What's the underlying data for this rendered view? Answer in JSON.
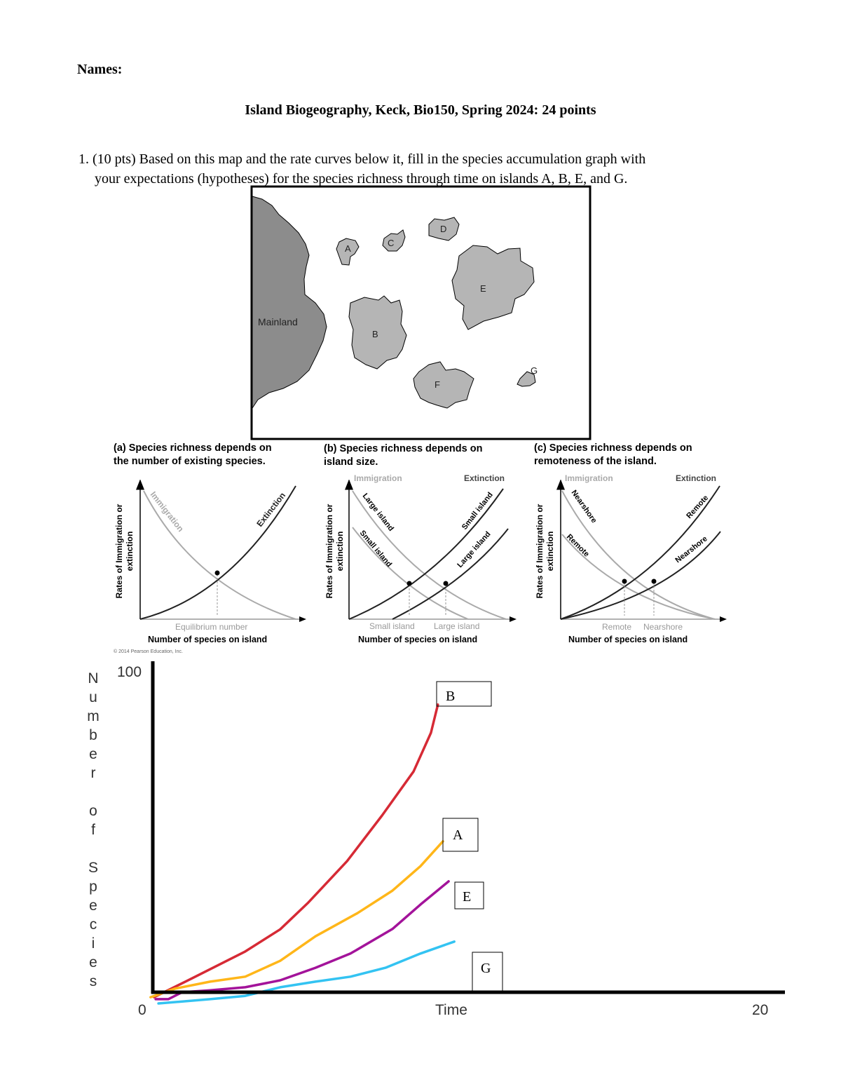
{
  "header": {
    "names_label": "Names:",
    "title": "Island Biogeography, Keck, Bio150, Spring 2024: 24 points"
  },
  "question": {
    "line1": "1. (10 pts) Based on this map and the rate curves below it, fill in the species accumulation graph with",
    "line2": "your expectations (hypotheses) for the species richness through time on islands A, B, E, and G."
  },
  "map": {
    "mainland": "Mainland",
    "islands": [
      "A",
      "B",
      "C",
      "D",
      "E",
      "F",
      "G"
    ]
  },
  "panels": {
    "a": {
      "title1": "(a) Species richness depends on",
      "title2": "the number of existing species.",
      "immigration": "Immigration",
      "extinction": "Extinction",
      "equilibrium": "Equilibrium number",
      "xlabel": "Number of species on island",
      "ylabel1": "Rates of Immigration or",
      "ylabel2": "extinction",
      "copyright": "© 2014 Pearson Education, Inc."
    },
    "b": {
      "title1": "(b) Species richness depends on",
      "title2": "island size.",
      "immigration": "Immigration",
      "extinction": "Extinction",
      "imm_large": "Large island",
      "imm_small": "Small island",
      "ext_small": "Small island",
      "ext_large": "Large island",
      "eq_small": "Small island",
      "eq_large": "Large island",
      "xlabel": "Number of species on island",
      "ylabel1": "Rates of Immigration or",
      "ylabel2": "extinction"
    },
    "c": {
      "title1": "(c) Species richness depends on",
      "title2": "remoteness of the island.",
      "immigration": "Immigration",
      "extinction": "Extinction",
      "imm_near": "Nearshore",
      "imm_remote": "Remote",
      "ext_remote": "Remote",
      "ext_near": "Nearshore",
      "eq_remote": "Remote",
      "eq_near": "Nearshore",
      "xlabel": "Number of species on island",
      "ylabel1": "Rates of Immigration or",
      "ylabel2": "extinction"
    }
  },
  "chart_data": {
    "type": "line",
    "title": "",
    "xlabel": "Time",
    "ylabel": "Number of Species",
    "ylabel_letters": [
      "N",
      "u",
      "m",
      "b",
      "e",
      "r",
      "",
      "o",
      "f",
      "",
      "S",
      "p",
      "e",
      "c",
      "i",
      "e",
      "s"
    ],
    "xlim": [
      0,
      20
    ],
    "ylim": [
      0,
      100
    ],
    "x_tick_labels": [
      "0",
      "20"
    ],
    "y_tick_labels": [
      "100"
    ],
    "grid": false,
    "series": [
      {
        "name": "B",
        "color": "#d62a35",
        "points": [
          [
            0.04,
            -1.5
          ],
          [
            1.16,
            3.8
          ],
          [
            2.93,
            12.3
          ],
          [
            4.04,
            19.0
          ],
          [
            4.93,
            27.1
          ],
          [
            6.16,
            39.6
          ],
          [
            7.27,
            53.4
          ],
          [
            8.27,
            66.7
          ],
          [
            8.82,
            78.4
          ],
          [
            9.04,
            86.9
          ]
        ]
      },
      {
        "name": "A",
        "color": "#ffb619",
        "points": [
          [
            -0.07,
            -1.5
          ],
          [
            0.71,
            1.1
          ],
          [
            1.82,
            3.2
          ],
          [
            2.93,
            4.7
          ],
          [
            4.04,
            9.5
          ],
          [
            5.16,
            16.9
          ],
          [
            6.49,
            23.9
          ],
          [
            7.6,
            30.7
          ],
          [
            8.49,
            38.1
          ],
          [
            9.2,
            45.6
          ]
        ]
      },
      {
        "name": "E",
        "color": "#a3139a",
        "points": [
          [
            0.09,
            -2.1
          ],
          [
            0.49,
            -2.1
          ],
          [
            0.93,
            0
          ],
          [
            1.82,
            0.6
          ],
          [
            2.93,
            1.5
          ],
          [
            4.04,
            3.6
          ],
          [
            5.16,
            7.4
          ],
          [
            6.27,
            11.7
          ],
          [
            7.6,
            19.1
          ],
          [
            8.49,
            26.5
          ],
          [
            9.38,
            33.5
          ]
        ]
      },
      {
        "name": "G",
        "color": "#33c3f2",
        "points": [
          [
            0.18,
            -3.4
          ],
          [
            1.82,
            -2.1
          ],
          [
            2.93,
            -1.1
          ],
          [
            4.04,
            1.5
          ],
          [
            5.16,
            3.2
          ],
          [
            6.27,
            4.7
          ],
          [
            7.38,
            7.4
          ],
          [
            8.49,
            11.7
          ],
          [
            9.56,
            15.3
          ]
        ]
      }
    ]
  }
}
